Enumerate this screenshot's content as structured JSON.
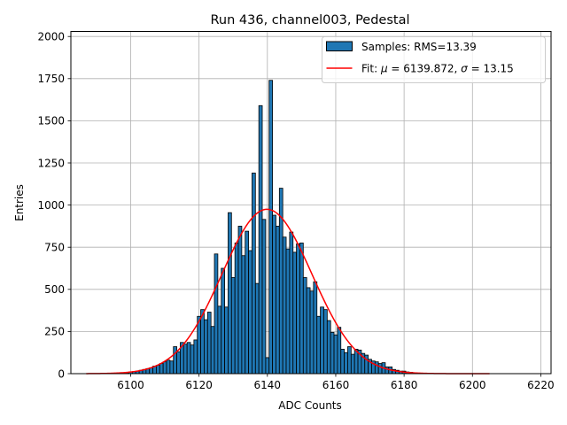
{
  "chart_data": {
    "type": "histogram",
    "title": "Run 436, channel003, Pedestal",
    "xlabel": "ADC Counts",
    "ylabel": "Entries",
    "xlim": [
      6082.5,
      6223
    ],
    "ylim": [
      0,
      2030
    ],
    "xticks": [
      6100,
      6120,
      6140,
      6160,
      6180,
      6200,
      6220
    ],
    "yticks": [
      0,
      250,
      500,
      750,
      1000,
      1250,
      1500,
      1750,
      2000
    ],
    "grid": true,
    "legend_position": "top-right",
    "bar_color": "#1f77b4",
    "fit_color": "#ff0000",
    "legend": {
      "samples": "Samples: RMS=13.39",
      "fit_prefix": "Fit: ",
      "fit_mu_symbol": "μ",
      "fit_mid": " = 6139.872, ",
      "fit_sigma_symbol": "σ",
      "fit_suffix": " = 13.15"
    },
    "fit": {
      "mu": 6139.872,
      "sigma": 13.15,
      "amplitude": 975,
      "x_range": [
        6087,
        6205
      ]
    },
    "bins": [
      {
        "x": 6099,
        "y": 5
      },
      {
        "x": 6100,
        "y": 10
      },
      {
        "x": 6101,
        "y": 12
      },
      {
        "x": 6102,
        "y": 15
      },
      {
        "x": 6103,
        "y": 20
      },
      {
        "x": 6104,
        "y": 25
      },
      {
        "x": 6105,
        "y": 30
      },
      {
        "x": 6106,
        "y": 35
      },
      {
        "x": 6107,
        "y": 45
      },
      {
        "x": 6108,
        "y": 50
      },
      {
        "x": 6109,
        "y": 60
      },
      {
        "x": 6110,
        "y": 70
      },
      {
        "x": 6111,
        "y": 80
      },
      {
        "x": 6112,
        "y": 75
      },
      {
        "x": 6113,
        "y": 160
      },
      {
        "x": 6114,
        "y": 130
      },
      {
        "x": 6115,
        "y": 185
      },
      {
        "x": 6116,
        "y": 175
      },
      {
        "x": 6117,
        "y": 185
      },
      {
        "x": 6118,
        "y": 170
      },
      {
        "x": 6119,
        "y": 200
      },
      {
        "x": 6120,
        "y": 340
      },
      {
        "x": 6121,
        "y": 380
      },
      {
        "x": 6122,
        "y": 320
      },
      {
        "x": 6123,
        "y": 365
      },
      {
        "x": 6124,
        "y": 280
      },
      {
        "x": 6125,
        "y": 710
      },
      {
        "x": 6126,
        "y": 400
      },
      {
        "x": 6127,
        "y": 625
      },
      {
        "x": 6128,
        "y": 395
      },
      {
        "x": 6129,
        "y": 955
      },
      {
        "x": 6130,
        "y": 570
      },
      {
        "x": 6131,
        "y": 775
      },
      {
        "x": 6132,
        "y": 875
      },
      {
        "x": 6133,
        "y": 700
      },
      {
        "x": 6134,
        "y": 845
      },
      {
        "x": 6135,
        "y": 730
      },
      {
        "x": 6136,
        "y": 1190
      },
      {
        "x": 6137,
        "y": 535
      },
      {
        "x": 6138,
        "y": 1590
      },
      {
        "x": 6139,
        "y": 915
      },
      {
        "x": 6140,
        "y": 95
      },
      {
        "x": 6141,
        "y": 1740
      },
      {
        "x": 6142,
        "y": 940
      },
      {
        "x": 6143,
        "y": 875
      },
      {
        "x": 6144,
        "y": 1100
      },
      {
        "x": 6145,
        "y": 810
      },
      {
        "x": 6146,
        "y": 740
      },
      {
        "x": 6147,
        "y": 840
      },
      {
        "x": 6148,
        "y": 720
      },
      {
        "x": 6149,
        "y": 770
      },
      {
        "x": 6150,
        "y": 775
      },
      {
        "x": 6151,
        "y": 570
      },
      {
        "x": 6152,
        "y": 510
      },
      {
        "x": 6153,
        "y": 490
      },
      {
        "x": 6154,
        "y": 545
      },
      {
        "x": 6155,
        "y": 340
      },
      {
        "x": 6156,
        "y": 395
      },
      {
        "x": 6157,
        "y": 380
      },
      {
        "x": 6158,
        "y": 315
      },
      {
        "x": 6159,
        "y": 245
      },
      {
        "x": 6160,
        "y": 230
      },
      {
        "x": 6161,
        "y": 275
      },
      {
        "x": 6162,
        "y": 145
      },
      {
        "x": 6163,
        "y": 125
      },
      {
        "x": 6164,
        "y": 160
      },
      {
        "x": 6165,
        "y": 115
      },
      {
        "x": 6166,
        "y": 145
      },
      {
        "x": 6167,
        "y": 140
      },
      {
        "x": 6168,
        "y": 120
      },
      {
        "x": 6169,
        "y": 110
      },
      {
        "x": 6170,
        "y": 85
      },
      {
        "x": 6171,
        "y": 75
      },
      {
        "x": 6172,
        "y": 70
      },
      {
        "x": 6173,
        "y": 60
      },
      {
        "x": 6174,
        "y": 65
      },
      {
        "x": 6175,
        "y": 40
      },
      {
        "x": 6176,
        "y": 40
      },
      {
        "x": 6177,
        "y": 25
      },
      {
        "x": 6178,
        "y": 20
      },
      {
        "x": 6179,
        "y": 15
      },
      {
        "x": 6180,
        "y": 15
      },
      {
        "x": 6181,
        "y": 10
      },
      {
        "x": 6182,
        "y": 8
      },
      {
        "x": 6183,
        "y": 5
      },
      {
        "x": 6184,
        "y": 3
      },
      {
        "x": 6185,
        "y": 2
      }
    ]
  }
}
